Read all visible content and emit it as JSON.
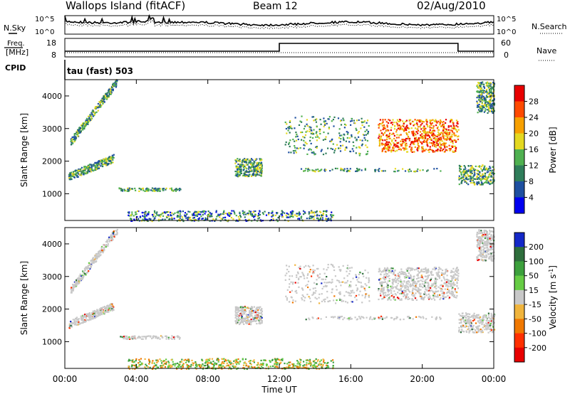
{
  "header": {
    "site": "Wallops Island (fitACF)",
    "beam": "Beam 12",
    "date": "02/Aug/2010"
  },
  "status_panels": {
    "nsky_label": "N.Sky",
    "freq_label_1": "Freq.",
    "freq_label_2": "[MHz]",
    "cpid_label": "CPID",
    "nsearch_label": "N.Search",
    "nave_label": "Nave",
    "noise_left_ticks": [
      "10^5",
      "10^0"
    ],
    "noise_right_ticks": [
      "10^5",
      "10^0"
    ],
    "freq_left_ticks": [
      "18",
      "8"
    ],
    "nave_right_ticks": [
      "60",
      "0"
    ],
    "cpid_text": "tau (fast) 503"
  },
  "chart_data": [
    {
      "type": "heatmap",
      "title": "",
      "ylabel": "Slant Range [km]",
      "ylim": [
        180,
        4500
      ],
      "yticks": [
        "1000",
        "2000",
        "3000",
        "4000"
      ],
      "xlabel": "Time UT",
      "xlim": [
        0,
        24
      ],
      "xticks": [
        "00:00",
        "04:00",
        "08:00",
        "12:00",
        "16:00",
        "20:00",
        "00:00"
      ],
      "colorbar_label": "Power [dB]",
      "colorbar_ticks": [
        "4",
        "8",
        "12",
        "16",
        "20",
        "24",
        "28"
      ],
      "colorbar_colors": [
        "#0000f0",
        "#1e4fa0",
        "#2f7d5a",
        "#4fb050",
        "#e4d820",
        "#f7a000",
        "#ff4a00",
        "#e80000"
      ]
    },
    {
      "type": "heatmap",
      "title": "",
      "ylabel": "Slant Range [km]",
      "ylim": [
        180,
        4500
      ],
      "yticks": [
        "1000",
        "2000",
        "3000",
        "4000"
      ],
      "xlabel": "Time UT",
      "xlim": [
        0,
        24
      ],
      "xticks": [
        "00:00",
        "04:00",
        "08:00",
        "12:00",
        "16:00",
        "20:00",
        "00:00"
      ],
      "colorbar_label": "Velocity [m s-1]",
      "colorbar_ticks": [
        "200",
        "100",
        "50",
        "15",
        "-15",
        "-50",
        "-100",
        "-200"
      ],
      "colorbar_colors": [
        "#1428c8",
        "#2e6e3c",
        "#3ca03c",
        "#66cc44",
        "#c8c8c8",
        "#f0b43c",
        "#f07800",
        "#ff3000",
        "#e80000"
      ]
    }
  ],
  "echo_regions": [
    {
      "t0": 0.2,
      "t1": 2.7,
      "r0": 1550,
      "r1": 2100,
      "kind": "arc"
    },
    {
      "t0": 0.3,
      "t1": 2.9,
      "r0": 2600,
      "r1": 4450,
      "kind": "arc"
    },
    {
      "t0": 9.5,
      "t1": 11.0,
      "r0": 1550,
      "r1": 2100,
      "kind": "band"
    },
    {
      "t0": 12.3,
      "t1": 17.0,
      "r0": 2200,
      "r1": 3400,
      "kind": "patch"
    },
    {
      "t0": 17.5,
      "t1": 22.0,
      "r0": 2300,
      "r1": 3300,
      "kind": "strong"
    },
    {
      "t0": 22.0,
      "t1": 24.0,
      "r0": 1300,
      "r1": 1900,
      "kind": "band"
    },
    {
      "t0": 13.0,
      "t1": 21.0,
      "r0": 1700,
      "r1": 1800,
      "kind": "line"
    },
    {
      "t0": 3.0,
      "t1": 6.5,
      "r0": 1100,
      "r1": 1200,
      "kind": "line"
    },
    {
      "t0": 3.5,
      "t1": 15.0,
      "r0": 180,
      "r1": 500,
      "kind": "ground"
    },
    {
      "t0": 23.0,
      "t1": 24.0,
      "r0": 3500,
      "r1": 4450,
      "kind": "patch"
    }
  ]
}
